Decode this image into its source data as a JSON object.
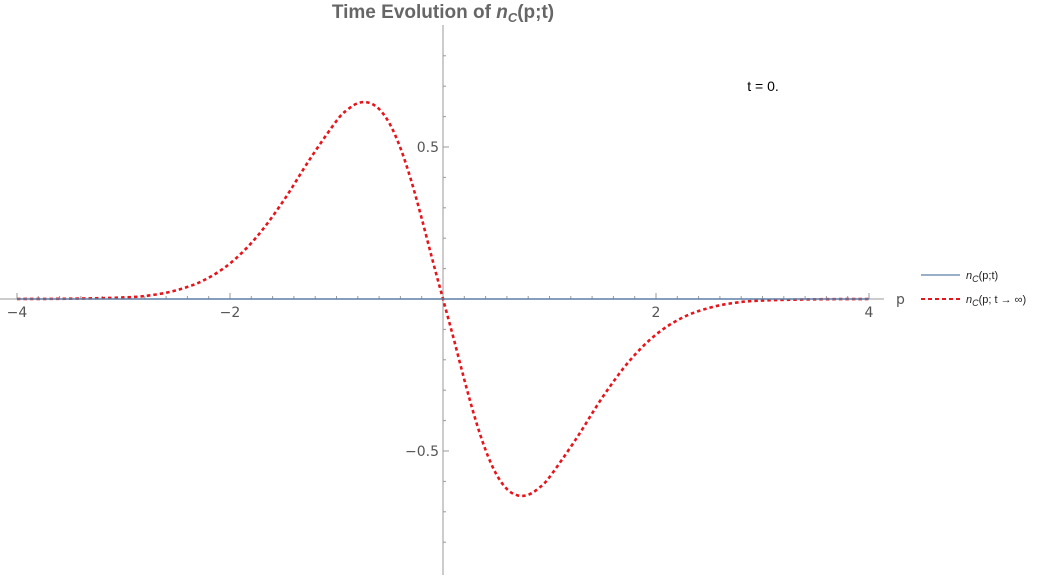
{
  "chart_data": {
    "type": "line",
    "title_prefix": "Time Evolution of ",
    "title_symbol": "n",
    "title_sub": "C",
    "title_suffix": "(p;t)",
    "xlabel": "p",
    "ylabel": "",
    "xlim": [
      -4,
      4
    ],
    "ylim": [
      -0.9,
      0.9
    ],
    "x_ticks": [
      -4,
      -2,
      2,
      4
    ],
    "x_tick_labels": [
      "−4",
      "−2",
      "2",
      "4"
    ],
    "y_ticks": [
      -0.5,
      0.5
    ],
    "y_tick_labels": [
      "−0.5",
      "0.5"
    ],
    "annotation": "t = 0.",
    "legend_position": "right",
    "series": [
      {
        "name_symbol": "n",
        "name_sub": "C",
        "name_suffix": "(p;t)",
        "color": "#5b7fa6",
        "style": "solid",
        "x": [
          -4,
          -3,
          -2,
          -1,
          0,
          1,
          2,
          3,
          4
        ],
        "y": [
          0,
          0,
          0,
          0,
          0,
          0,
          0,
          0,
          0
        ]
      },
      {
        "name_symbol": "n",
        "name_sub": "C",
        "name_suffix": "(p; t → ∞)",
        "color": "#e8141b",
        "style": "dashed",
        "x": [
          -4.0,
          -3.5,
          -3.0,
          -2.75,
          -2.5,
          -2.25,
          -2.0,
          -1.75,
          -1.5,
          -1.25,
          -1.0,
          -0.9,
          -0.8,
          -0.7,
          -0.6,
          -0.5,
          -0.4,
          -0.3,
          -0.2,
          -0.1,
          0.0,
          0.1,
          0.2,
          0.3,
          0.4,
          0.5,
          0.6,
          0.7,
          0.8,
          0.9,
          1.0,
          1.25,
          1.5,
          1.75,
          2.0,
          2.25,
          2.5,
          2.75,
          3.0,
          3.5,
          4.0
        ],
        "y": [
          0.0,
          0.001,
          0.005,
          0.012,
          0.029,
          0.061,
          0.117,
          0.204,
          0.322,
          0.46,
          0.586,
          0.622,
          0.644,
          0.646,
          0.625,
          0.576,
          0.497,
          0.391,
          0.265,
          0.13,
          0.0,
          -0.13,
          -0.265,
          -0.391,
          -0.497,
          -0.576,
          -0.625,
          -0.646,
          -0.644,
          -0.622,
          -0.586,
          -0.46,
          -0.322,
          -0.204,
          -0.117,
          -0.061,
          -0.029,
          -0.012,
          -0.005,
          -0.001,
          0.0
        ]
      }
    ]
  }
}
